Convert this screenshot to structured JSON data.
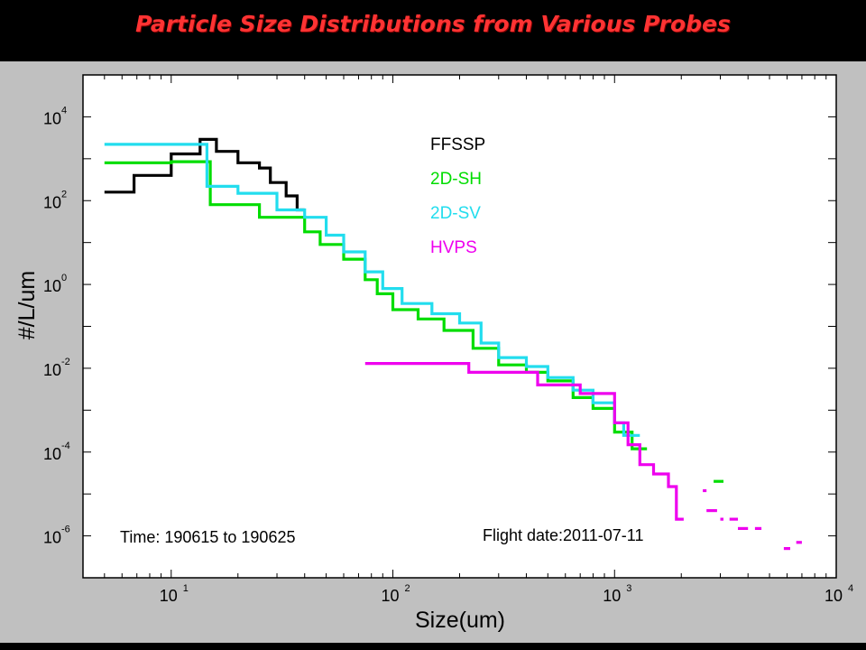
{
  "slide": {
    "title": "Particle Size Distributions from Various Probes"
  },
  "chart_data": {
    "type": "line",
    "step": true,
    "xlabel": "Size(um)",
    "ylabel": "#/L/um",
    "x_scale": "log",
    "y_scale": "log",
    "xlim": [
      4,
      10000
    ],
    "ylim": [
      1e-07,
      100000.0
    ],
    "x_ticks": [
      {
        "value": 10,
        "base": "10",
        "exp": "1"
      },
      {
        "value": 100,
        "base": "10",
        "exp": "2"
      },
      {
        "value": 1000,
        "base": "10",
        "exp": "3"
      },
      {
        "value": 10000,
        "base": "10",
        "exp": "4"
      }
    ],
    "y_ticks": [
      {
        "value": 10000,
        "base": "10",
        "exp": "4"
      },
      {
        "value": 100,
        "base": "10",
        "exp": "2"
      },
      {
        "value": 1,
        "base": "10",
        "exp": "0"
      },
      {
        "value": 0.01,
        "base": "10",
        "exp": "-2"
      },
      {
        "value": 0.0001,
        "base": "10",
        "exp": "-4"
      },
      {
        "value": 1e-06,
        "base": "10",
        "exp": "-6"
      }
    ],
    "grid": false,
    "legend_position": "top-center",
    "annotations": {
      "time": "Time: 190615 to 190625",
      "flight_date": "Flight date:2011-07-11"
    },
    "series": [
      {
        "name": "FFSSP",
        "color": "#000000",
        "points": [
          [
            5,
            160
          ],
          [
            6.8,
            160
          ],
          [
            6.8,
            400
          ],
          [
            10,
            400
          ],
          [
            10,
            1300
          ],
          [
            13.5,
            1300
          ],
          [
            13.5,
            2900
          ],
          [
            16,
            2900
          ],
          [
            16,
            1500
          ],
          [
            20,
            1500
          ],
          [
            20,
            800
          ],
          [
            25,
            800
          ],
          [
            25,
            600
          ],
          [
            28,
            600
          ],
          [
            28,
            270
          ],
          [
            33,
            270
          ],
          [
            33,
            130
          ],
          [
            37,
            130
          ],
          [
            37,
            60
          ],
          [
            40,
            60
          ]
        ]
      },
      {
        "name": "2D-SH",
        "color": "#00dd00",
        "points": [
          [
            5,
            800
          ],
          [
            10,
            800
          ],
          [
            10,
            850
          ],
          [
            15,
            850
          ],
          [
            15,
            80
          ],
          [
            25,
            80
          ],
          [
            25,
            40
          ],
          [
            40,
            40
          ],
          [
            40,
            18
          ],
          [
            47,
            18
          ],
          [
            47,
            9
          ],
          [
            60,
            9
          ],
          [
            60,
            4
          ],
          [
            75,
            4
          ],
          [
            75,
            1.3
          ],
          [
            85,
            1.3
          ],
          [
            85,
            0.6
          ],
          [
            100,
            0.6
          ],
          [
            100,
            0.25
          ],
          [
            130,
            0.25
          ],
          [
            130,
            0.15
          ],
          [
            170,
            0.15
          ],
          [
            170,
            0.08
          ],
          [
            230,
            0.08
          ],
          [
            230,
            0.03
          ],
          [
            300,
            0.03
          ],
          [
            300,
            0.012
          ],
          [
            400,
            0.012
          ],
          [
            400,
            0.008
          ],
          [
            500,
            0.008
          ],
          [
            500,
            0.005
          ],
          [
            650,
            0.005
          ],
          [
            650,
            0.002
          ],
          [
            800,
            0.002
          ],
          [
            800,
            0.0011
          ],
          [
            1000,
            0.0011
          ],
          [
            1000,
            0.0003
          ],
          [
            1200,
            0.0003
          ],
          [
            1200,
            0.00012
          ],
          [
            1400,
            0.00012
          ]
        ]
      },
      {
        "name": "2D-SV",
        "color": "#22ddee",
        "points": [
          [
            5,
            2200
          ],
          [
            14.5,
            2200
          ],
          [
            14.5,
            220
          ],
          [
            20,
            220
          ],
          [
            20,
            150
          ],
          [
            30,
            150
          ],
          [
            30,
            60
          ],
          [
            40,
            60
          ],
          [
            40,
            40
          ],
          [
            50,
            40
          ],
          [
            50,
            15
          ],
          [
            60,
            15
          ],
          [
            60,
            6
          ],
          [
            75,
            6
          ],
          [
            75,
            2
          ],
          [
            90,
            2
          ],
          [
            90,
            0.8
          ],
          [
            110,
            0.8
          ],
          [
            110,
            0.35
          ],
          [
            150,
            0.35
          ],
          [
            150,
            0.2
          ],
          [
            200,
            0.2
          ],
          [
            200,
            0.12
          ],
          [
            250,
            0.12
          ],
          [
            250,
            0.04
          ],
          [
            300,
            0.04
          ],
          [
            300,
            0.018
          ],
          [
            400,
            0.018
          ],
          [
            400,
            0.011
          ],
          [
            500,
            0.011
          ],
          [
            500,
            0.006
          ],
          [
            650,
            0.006
          ],
          [
            650,
            0.003
          ],
          [
            800,
            0.003
          ],
          [
            800,
            0.0015
          ],
          [
            1000,
            0.0015
          ],
          [
            1000,
            0.0005
          ],
          [
            1100,
            0.0005
          ],
          [
            1100,
            0.00025
          ],
          [
            1300,
            0.00025
          ]
        ]
      },
      {
        "name": "HVPS",
        "color": "#ee00ee",
        "points": [
          [
            75,
            0.013
          ],
          [
            220,
            0.013
          ],
          [
            220,
            0.008
          ],
          [
            450,
            0.008
          ],
          [
            450,
            0.004
          ],
          [
            700,
            0.004
          ],
          [
            700,
            0.0025
          ],
          [
            1000,
            0.0025
          ],
          [
            1000,
            0.0005
          ],
          [
            1150,
            0.0005
          ],
          [
            1150,
            0.00015
          ],
          [
            1300,
            0.00015
          ],
          [
            1300,
            5e-05
          ],
          [
            1500,
            5e-05
          ],
          [
            1500,
            3e-05
          ],
          [
            1750,
            3e-05
          ],
          [
            1750,
            1.5e-05
          ],
          [
            1900,
            1.5e-05
          ],
          [
            1900,
            2.5e-06
          ],
          [
            2050,
            2.5e-06
          ]
        ]
      }
    ],
    "isolated_segments": [
      {
        "series": "HVPS",
        "points": [
          [
            2500,
            1.2e-05
          ],
          [
            2600,
            1.2e-05
          ]
        ]
      },
      {
        "series": "HVPS",
        "points": [
          [
            2600,
            4e-06
          ],
          [
            2900,
            4e-06
          ]
        ]
      },
      {
        "series": "HVPS",
        "points": [
          [
            3000,
            2.5e-06
          ],
          [
            3100,
            2.5e-06
          ]
        ]
      },
      {
        "series": "HVPS",
        "points": [
          [
            3300,
            2.5e-06
          ],
          [
            3600,
            2.5e-06
          ]
        ]
      },
      {
        "series": "HVPS",
        "points": [
          [
            3600,
            1.5e-06
          ],
          [
            4000,
            1.5e-06
          ]
        ]
      },
      {
        "series": "HVPS",
        "points": [
          [
            4300,
            1.5e-06
          ],
          [
            4600,
            1.5e-06
          ]
        ]
      },
      {
        "series": "HVPS",
        "points": [
          [
            5800,
            5e-07
          ],
          [
            6200,
            5e-07
          ]
        ]
      },
      {
        "series": "HVPS",
        "points": [
          [
            6600,
            7e-07
          ],
          [
            7000,
            7e-07
          ]
        ]
      },
      {
        "series": "2D-SH",
        "points": [
          [
            2800,
            2e-05
          ],
          [
            3100,
            2e-05
          ]
        ]
      }
    ]
  }
}
